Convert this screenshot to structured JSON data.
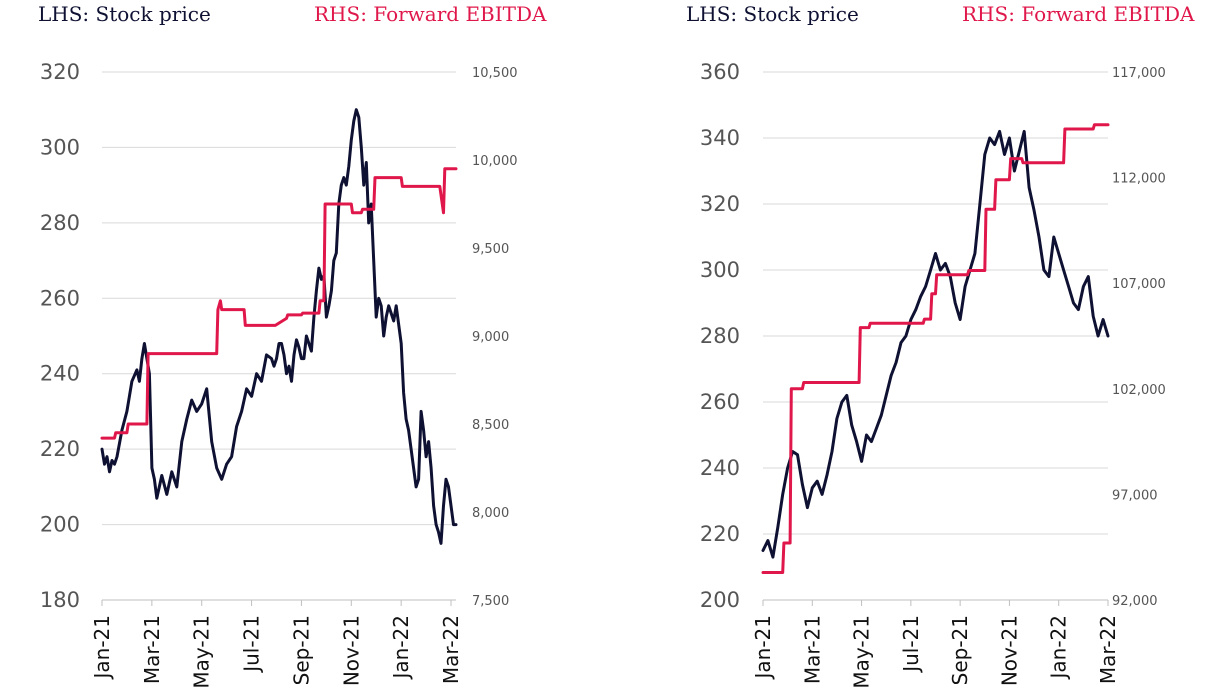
{
  "chart_data": [
    {
      "type": "line",
      "lhs_legend": "LHS: Stock price",
      "rhs_legend": "RHS: Forward EBITDA",
      "x_ticks": [
        "Jan-21",
        "Mar-21",
        "May-21",
        "Jul-21",
        "Sep-21",
        "Nov-21",
        "Jan-22",
        "Mar-22"
      ],
      "y_left_ticks": [
        "320",
        "300",
        "280",
        "260",
        "240",
        "220",
        "200",
        "180"
      ],
      "y_right_ticks": [
        "10,500",
        "10,000",
        "9,500",
        "9,000",
        "8,500",
        "8,000",
        "7,500"
      ],
      "ylim_left": [
        180,
        320
      ],
      "ylim_right": [
        7500,
        10500
      ],
      "grid": true,
      "colors": {
        "stock": "#0f1133",
        "ebitda": "#e0174a"
      },
      "series": [
        {
          "name": "Stock price",
          "axis": "left",
          "x": [
            0,
            0.1,
            0.2,
            0.3,
            0.4,
            0.5,
            0.6,
            0.8,
            1.0,
            1.2,
            1.4,
            1.5,
            1.6,
            1.7,
            1.8,
            1.9,
            2.0,
            2.1,
            2.2,
            2.3,
            2.4,
            2.6,
            2.8,
            3.0,
            3.2,
            3.4,
            3.6,
            3.8,
            4.0,
            4.2,
            4.4,
            4.6,
            4.8,
            5.0,
            5.2,
            5.4,
            5.6,
            5.8,
            6.0,
            6.2,
            6.4,
            6.6,
            6.8,
            6.9,
            7.0,
            7.1,
            7.2,
            7.3,
            7.4,
            7.5,
            7.6,
            7.7,
            7.8,
            7.9,
            8.0,
            8.1,
            8.2,
            8.3,
            8.4,
            8.5,
            8.6,
            8.7,
            8.8,
            8.9,
            9.0,
            9.1,
            9.2,
            9.3,
            9.4,
            9.5,
            9.6,
            9.7,
            9.8,
            9.9,
            10.0,
            10.1,
            10.2,
            10.3,
            10.4,
            10.5,
            10.6,
            10.7,
            10.8,
            10.9,
            11.0,
            11.1,
            11.2,
            11.3,
            11.4,
            11.5,
            11.6,
            11.7,
            11.8,
            11.9,
            12.0,
            12.1,
            12.2,
            12.3,
            12.4,
            12.5,
            12.6,
            12.7,
            12.8,
            12.9,
            13.0,
            13.1,
            13.2,
            13.3,
            13.4,
            13.5,
            13.6,
            13.7,
            13.8,
            13.9,
            14.0,
            14.1,
            14.2
          ],
          "values": [
            220,
            216,
            218,
            214,
            217,
            216,
            218,
            225,
            230,
            238,
            241,
            238,
            244,
            248,
            244,
            240,
            215,
            212,
            207,
            210,
            213,
            208,
            214,
            210,
            222,
            228,
            233,
            230,
            232,
            236,
            222,
            215,
            212,
            216,
            218,
            226,
            230,
            236,
            234,
            240,
            238,
            245,
            244,
            242,
            244,
            248,
            248,
            245,
            240,
            242,
            238,
            245,
            249,
            247,
            244,
            244,
            250,
            248,
            246,
            255,
            262,
            268,
            265,
            266,
            255,
            258,
            262,
            270,
            272,
            285,
            290,
            292,
            290,
            295,
            302,
            307,
            310,
            308,
            300,
            290,
            296,
            280,
            285,
            270,
            255,
            260,
            258,
            250,
            255,
            258,
            256,
            254,
            258,
            253,
            248,
            235,
            228,
            225,
            220,
            215,
            210,
            212,
            230,
            225,
            218,
            222,
            215,
            205,
            200,
            198,
            195,
            205,
            212,
            210,
            205,
            200,
            200
          ],
          "x_note": "months since Jan-21"
        },
        {
          "name": "Forward EBITDA",
          "axis": "right",
          "x": [
            0,
            0.5,
            0.55,
            1.0,
            1.05,
            1.8,
            1.85,
            4.6,
            4.65,
            4.75,
            4.8,
            5.7,
            5.75,
            6.9,
            6.95,
            7.4,
            7.45,
            8.0,
            8.05,
            8.7,
            8.75,
            8.9,
            8.95,
            10.0,
            10.05,
            10.4,
            10.45,
            10.9,
            10.95,
            12.0,
            12.05,
            13.5,
            13.55,
            13.7,
            13.75,
            14.2
          ],
          "values": [
            8420,
            8420,
            8450,
            8450,
            8500,
            8500,
            8900,
            8900,
            9150,
            9200,
            9150,
            9150,
            9060,
            9060,
            9060,
            9100,
            9120,
            9120,
            9130,
            9130,
            9200,
            9200,
            9750,
            9750,
            9700,
            9700,
            9720,
            9720,
            9900,
            9900,
            9850,
            9850,
            9850,
            9700,
            9950,
            9950
          ]
        }
      ]
    },
    {
      "type": "line",
      "lhs_legend": "LHS: Stock price",
      "rhs_legend": "RHS: Forward EBITDA",
      "x_ticks": [
        "Jan-21",
        "Mar-21",
        "May-21",
        "Jul-21",
        "Sep-21",
        "Nov-21",
        "Jan-22",
        "Mar-22"
      ],
      "y_left_ticks": [
        "360",
        "340",
        "320",
        "300",
        "280",
        "260",
        "240",
        "220",
        "200"
      ],
      "y_right_ticks": [
        "117,000",
        "112,000",
        "107,000",
        "102,000",
        "97,000",
        "92,000"
      ],
      "ylim_left": [
        200,
        360
      ],
      "ylim_right": [
        92000,
        117000
      ],
      "grid": true,
      "colors": {
        "stock": "#0f1133",
        "ebitda": "#e0174a"
      },
      "series": [
        {
          "name": "Stock price",
          "axis": "left",
          "x": [
            0,
            0.2,
            0.4,
            0.6,
            0.8,
            1.0,
            1.2,
            1.4,
            1.6,
            1.8,
            2.0,
            2.2,
            2.4,
            2.6,
            2.8,
            3.0,
            3.2,
            3.4,
            3.6,
            3.8,
            4.0,
            4.2,
            4.4,
            4.6,
            4.8,
            5.0,
            5.2,
            5.4,
            5.6,
            5.8,
            6.0,
            6.2,
            6.4,
            6.6,
            6.8,
            7.0,
            7.2,
            7.4,
            7.6,
            7.8,
            8.0,
            8.2,
            8.4,
            8.6,
            8.8,
            9.0,
            9.2,
            9.4,
            9.6,
            9.8,
            10.0,
            10.2,
            10.4,
            10.6,
            10.8,
            11.0,
            11.2,
            11.4,
            11.6,
            11.8,
            12.0,
            12.2,
            12.4,
            12.6,
            12.8,
            13.0,
            13.2,
            13.4,
            13.6,
            13.8,
            14.0
          ],
          "values": [
            215,
            218,
            213,
            222,
            232,
            240,
            245,
            244,
            235,
            228,
            234,
            236,
            232,
            238,
            245,
            255,
            260,
            262,
            253,
            248,
            242,
            250,
            248,
            252,
            256,
            262,
            268,
            272,
            278,
            280,
            285,
            288,
            292,
            295,
            300,
            305,
            300,
            302,
            298,
            290,
            285,
            295,
            300,
            305,
            320,
            335,
            340,
            338,
            342,
            335,
            340,
            330,
            336,
            342,
            325,
            318,
            310,
            300,
            298,
            310,
            305,
            300,
            295,
            290,
            288,
            295,
            298,
            286,
            280,
            285,
            280
          ]
        },
        {
          "name": "Forward EBITDA",
          "axis": "right",
          "x": [
            0,
            0.8,
            0.85,
            1.1,
            1.15,
            1.6,
            1.65,
            3.9,
            3.95,
            4.3,
            4.35,
            6.5,
            6.55,
            6.8,
            6.85,
            7.0,
            7.05,
            8.3,
            8.35,
            9.0,
            9.05,
            9.4,
            9.45,
            10.0,
            10.05,
            10.5,
            10.55,
            12.2,
            12.25,
            13.4,
            13.45,
            14.0
          ],
          "values": [
            93300,
            93300,
            94700,
            94700,
            102000,
            102000,
            102300,
            102300,
            104900,
            104900,
            105100,
            105100,
            105300,
            105300,
            106500,
            106500,
            107400,
            107400,
            107600,
            107600,
            110500,
            110500,
            111900,
            111900,
            112900,
            112900,
            112700,
            112700,
            114300,
            114300,
            114500,
            114500
          ]
        }
      ]
    }
  ]
}
